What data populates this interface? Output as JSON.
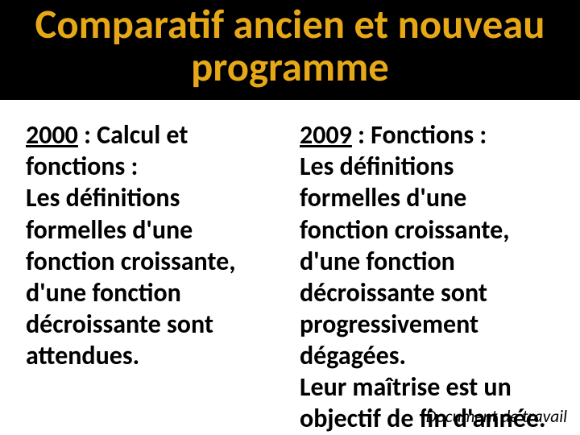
{
  "title": {
    "text": "Comparatif ancien et nouveau programme",
    "color": "#e6a817",
    "fontsize_pt": 38,
    "background_color": "#000000"
  },
  "columns": {
    "left": {
      "heading": "2000",
      "heading_after": " : Calcul et fonctions :",
      "body": "Les définitions formelles d'une fonction croissante, d'une fonction décroissante sont ",
      "body_strong": "attendues",
      "body_after": ".",
      "part2_before": "",
      "part2_strong": "",
      "part2_after": ""
    },
    "right": {
      "heading": "2009",
      "heading_after": " : Fonctions :",
      "body": "Les définitions formelles d'une fonction croissante, d'une fonction décroissante sont ",
      "body_strong": "progressivement dégagées",
      "body_after": ".",
      "part2_before": "Leur maîtrise est un ",
      "part2_strong": "objectif de fin d'année",
      "part2_after": "."
    },
    "text_color": "#000000",
    "fontsize_pt": 24,
    "font_weight": 600
  },
  "footer": {
    "text": "Document de travail",
    "color": "#000000",
    "fontsize_pt": 16
  }
}
